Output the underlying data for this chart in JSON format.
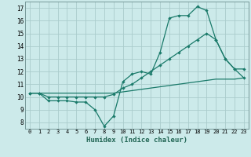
{
  "xlabel": "Humidex (Indice chaleur)",
  "bg_color": "#cceaea",
  "grid_color": "#aacccc",
  "line_color": "#1a7a6a",
  "xlim": [
    -0.5,
    23.5
  ],
  "ylim": [
    7.5,
    17.5
  ],
  "xticks": [
    0,
    1,
    2,
    3,
    4,
    5,
    6,
    7,
    8,
    9,
    10,
    11,
    12,
    13,
    14,
    15,
    16,
    17,
    18,
    19,
    20,
    21,
    22,
    23
  ],
  "yticks": [
    8,
    9,
    10,
    11,
    12,
    13,
    14,
    15,
    16,
    17
  ],
  "line1_x": [
    0,
    1,
    2,
    3,
    4,
    5,
    6,
    7,
    8,
    9,
    10,
    11,
    12,
    13,
    14,
    15,
    16,
    17,
    18,
    19,
    20,
    21,
    22,
    23
  ],
  "line1_y": [
    10.3,
    10.3,
    9.7,
    9.7,
    9.7,
    9.6,
    9.6,
    9.0,
    7.7,
    8.5,
    11.2,
    11.8,
    12.0,
    11.8,
    13.5,
    16.2,
    16.4,
    16.4,
    17.1,
    16.8,
    14.5,
    13.0,
    12.2,
    11.5
  ],
  "line2_x": [
    0,
    1,
    2,
    3,
    4,
    5,
    6,
    7,
    8,
    9,
    10,
    11,
    12,
    13,
    14,
    15,
    16,
    17,
    18,
    19,
    20,
    21,
    22,
    23
  ],
  "line2_y": [
    10.3,
    10.3,
    10.0,
    10.0,
    10.0,
    10.0,
    10.0,
    10.0,
    10.0,
    10.2,
    10.7,
    11.0,
    11.5,
    12.0,
    12.5,
    13.0,
    13.5,
    14.0,
    14.5,
    15.0,
    14.5,
    13.0,
    12.2,
    12.2
  ],
  "line3_x": [
    0,
    1,
    2,
    3,
    4,
    5,
    6,
    7,
    8,
    9,
    10,
    11,
    12,
    13,
    14,
    15,
    16,
    17,
    18,
    19,
    20,
    21,
    22,
    23
  ],
  "line3_y": [
    10.3,
    10.3,
    10.3,
    10.3,
    10.3,
    10.3,
    10.3,
    10.3,
    10.3,
    10.3,
    10.4,
    10.5,
    10.6,
    10.7,
    10.8,
    10.9,
    11.0,
    11.1,
    11.2,
    11.3,
    11.4,
    11.4,
    11.4,
    11.5
  ]
}
